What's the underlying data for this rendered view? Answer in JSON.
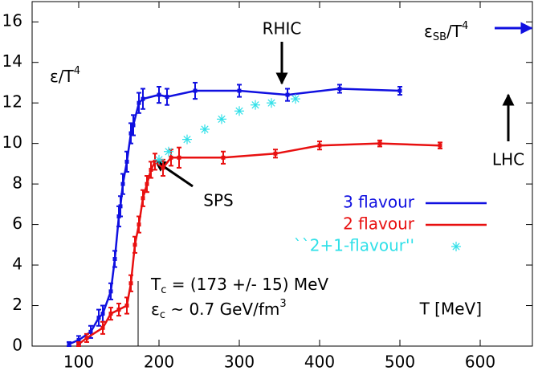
{
  "chart_data": {
    "type": "errorbar",
    "xlim": [
      42,
      665
    ],
    "ylim": [
      0,
      17
    ],
    "xticks": [
      100,
      200,
      300,
      400,
      500,
      600
    ],
    "yticks": [
      0,
      2,
      4,
      6,
      8,
      10,
      12,
      14,
      16
    ],
    "y_label": [
      {
        "text": "ε/T"
      },
      {
        "text": "4",
        "script": "sup"
      }
    ],
    "x_label": "T [MeV]",
    "annotations": {
      "rhic": "RHIC",
      "lhc": "LHC",
      "sps": "SPS",
      "sb": [
        {
          "text": "ε"
        },
        {
          "text": "SB",
          "script": "sub"
        },
        {
          "text": "/T"
        },
        {
          "text": "4",
          "script": "sup"
        }
      ],
      "tc": [
        {
          "text": "T"
        },
        {
          "text": "c",
          "script": "sub"
        },
        {
          "text": " = (173 +/- 15) MeV"
        }
      ],
      "ec": [
        {
          "text": "ε"
        },
        {
          "text": "c",
          "script": "sub"
        },
        {
          "text": " ~ 0.7 GeV/fm"
        },
        {
          "text": "3",
          "script": "sup"
        }
      ]
    },
    "series": [
      {
        "name": "3 flavour",
        "color": "#1010e0",
        "marker": "dot",
        "line": true,
        "x": [
          88,
          100,
          115,
          125,
          130,
          140,
          145,
          150,
          152,
          155,
          160,
          165,
          168,
          175,
          180,
          200,
          210,
          245,
          300,
          360,
          425,
          500
        ],
        "values": [
          0.1,
          0.3,
          0.7,
          1.4,
          1.6,
          2.7,
          4.3,
          6.4,
          6.9,
          8.0,
          9.1,
          10.5,
          10.9,
          12.0,
          12.2,
          12.4,
          12.3,
          12.6,
          12.6,
          12.4,
          12.7,
          12.6
        ],
        "errors": [
          0.1,
          0.2,
          0.3,
          0.4,
          0.4,
          0.4,
          0.4,
          0.5,
          0.5,
          0.5,
          0.5,
          0.5,
          0.5,
          0.5,
          0.5,
          0.4,
          0.4,
          0.4,
          0.3,
          0.3,
          0.2,
          0.2
        ]
      },
      {
        "name": "2 flavour",
        "color": "#e81010",
        "marker": "dot",
        "line": true,
        "x": [
          100,
          110,
          130,
          140,
          150,
          160,
          165,
          170,
          175,
          180,
          185,
          190,
          195,
          205,
          215,
          225,
          280,
          345,
          400,
          475,
          550
        ],
        "values": [
          0.1,
          0.4,
          0.9,
          1.6,
          1.8,
          2.0,
          3.1,
          5.0,
          6.0,
          7.3,
          8.0,
          8.7,
          9.1,
          8.8,
          9.3,
          9.3,
          9.3,
          9.5,
          9.9,
          10.0,
          9.9
        ],
        "errors": [
          0.1,
          0.2,
          0.3,
          0.3,
          0.3,
          0.4,
          0.4,
          0.4,
          0.4,
          0.4,
          0.4,
          0.4,
          0.4,
          0.4,
          0.4,
          0.5,
          0.3,
          0.2,
          0.2,
          0.15,
          0.15
        ]
      },
      {
        "name": "``2+1-flavour''",
        "color": "#30e0e8",
        "marker": "star",
        "line": false,
        "x": [
          200,
          212,
          235,
          257,
          278,
          300,
          320,
          340,
          370
        ],
        "values": [
          9.2,
          9.6,
          10.2,
          10.7,
          11.2,
          11.6,
          11.9,
          12.0,
          12.2
        ]
      }
    ]
  }
}
